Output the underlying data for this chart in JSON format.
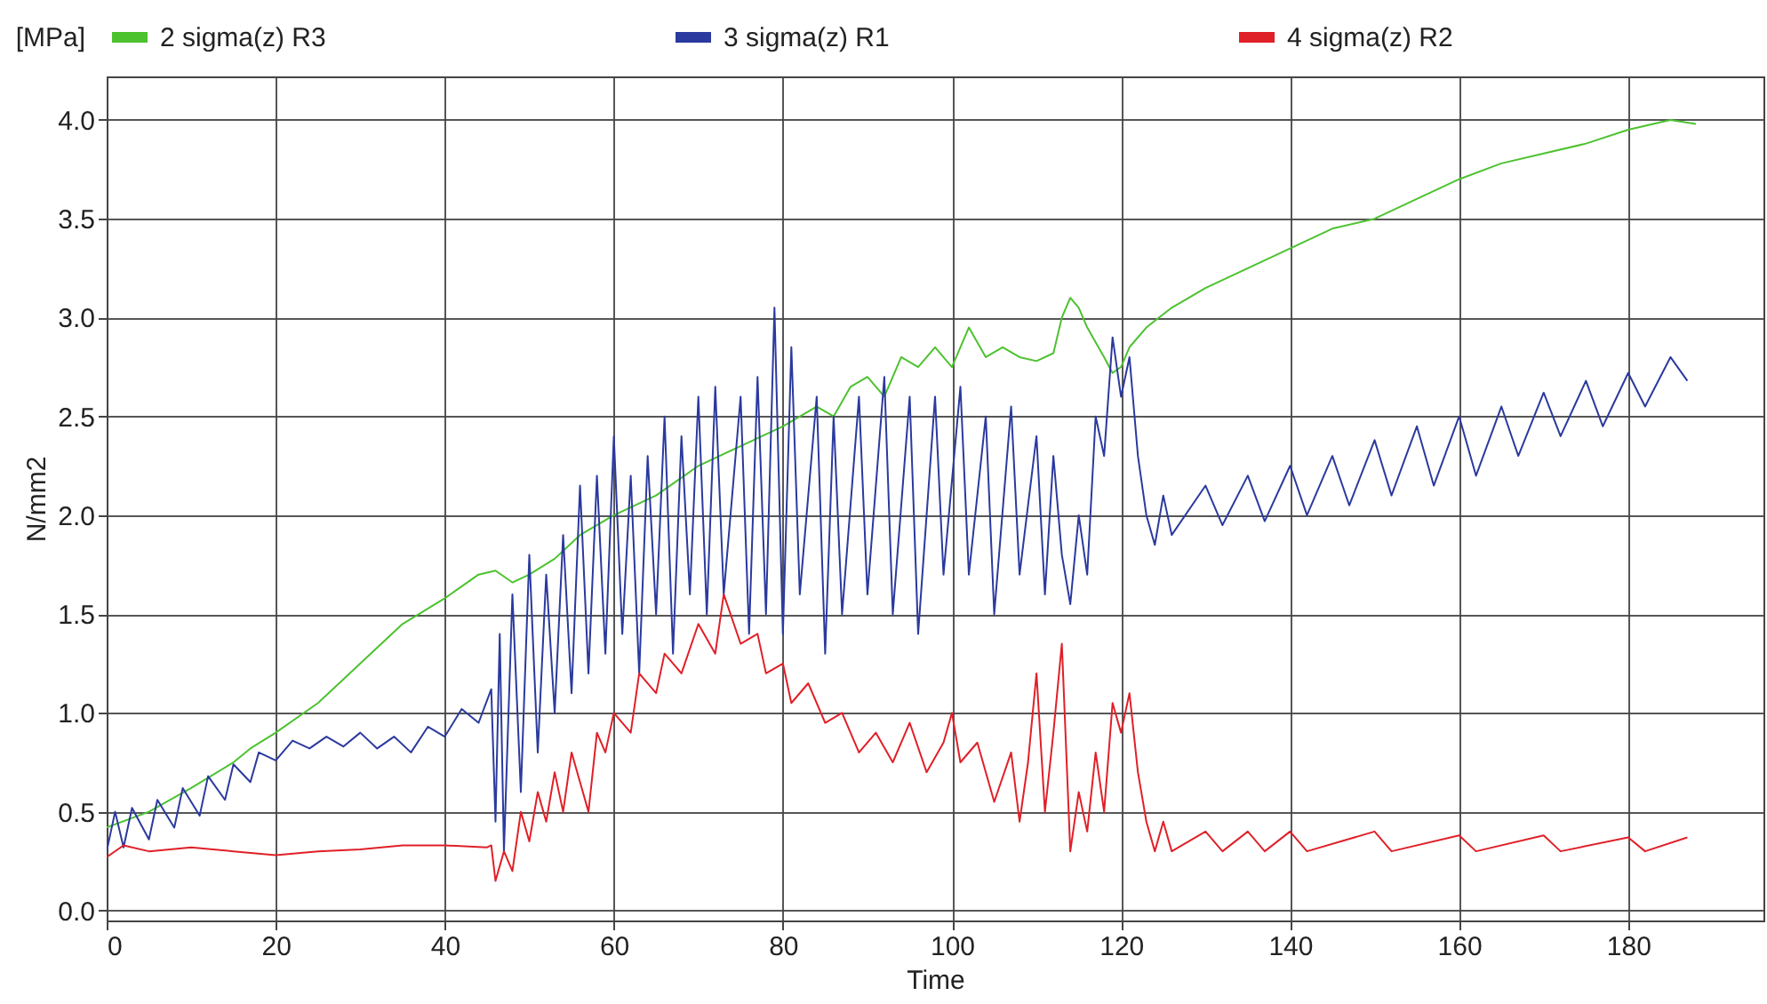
{
  "chart_data": {
    "type": "line",
    "xlabel": "Time",
    "ylabel": "N/mm2",
    "annotations": [
      "[MPa]"
    ],
    "xlim": [
      0,
      196
    ],
    "ylim": [
      -0.05,
      4.22
    ],
    "xticks": [
      0,
      20,
      40,
      60,
      80,
      100,
      120,
      140,
      160,
      180
    ],
    "yticks": [
      {
        "value": 0,
        "label": "0.0"
      },
      {
        "value": 0.5,
        "label": "0.5"
      },
      {
        "value": 1,
        "label": "1.0"
      },
      {
        "value": 1.5,
        "label": "1.5"
      },
      {
        "value": 2,
        "label": "2.0"
      },
      {
        "value": 2.5,
        "label": "2.5"
      },
      {
        "value": 3,
        "label": "3.0"
      },
      {
        "value": 3.5,
        "label": "3.5"
      },
      {
        "value": 4,
        "label": "4.0"
      }
    ],
    "grid": true,
    "legend": "top",
    "line_style": "solid",
    "series": [
      {
        "name": "2  sigma(z) R3",
        "color": "#4cc22f",
        "x": [
          0,
          5,
          10,
          15,
          17,
          20,
          25,
          30,
          35,
          40,
          44,
          46,
          48,
          50,
          53,
          56,
          60,
          65,
          70,
          75,
          80,
          84,
          86,
          88,
          90,
          92,
          94,
          96,
          98,
          100,
          102,
          104,
          106,
          108,
          110,
          112,
          113,
          114,
          115,
          116,
          118,
          119,
          120,
          121,
          123,
          126,
          130,
          135,
          140,
          145,
          150,
          155,
          160,
          165,
          170,
          175,
          180,
          185,
          188
        ],
        "values": [
          0.42,
          0.5,
          0.62,
          0.75,
          0.82,
          0.9,
          1.05,
          1.25,
          1.45,
          1.58,
          1.7,
          1.72,
          1.66,
          1.7,
          1.78,
          1.9,
          2.0,
          2.1,
          2.25,
          2.35,
          2.45,
          2.55,
          2.5,
          2.65,
          2.7,
          2.6,
          2.8,
          2.75,
          2.85,
          2.75,
          2.95,
          2.8,
          2.85,
          2.8,
          2.78,
          2.82,
          3.0,
          3.1,
          3.05,
          2.95,
          2.8,
          2.72,
          2.75,
          2.85,
          2.95,
          3.05,
          3.15,
          3.25,
          3.35,
          3.45,
          3.5,
          3.6,
          3.7,
          3.78,
          3.83,
          3.88,
          3.95,
          4.0,
          3.98
        ]
      },
      {
        "name": "3  sigma(z) R1",
        "color": "#2b3a9e",
        "x": [
          0,
          1,
          2,
          3,
          5,
          6,
          8,
          9,
          11,
          12,
          14,
          15,
          17,
          18,
          20,
          22,
          24,
          26,
          28,
          30,
          32,
          34,
          36,
          38,
          40,
          42,
          44,
          45.5,
          46,
          46.5,
          47,
          48,
          49,
          50,
          51,
          52,
          53,
          54,
          55,
          56,
          57,
          58,
          59,
          60,
          61,
          62,
          63,
          64,
          65,
          66,
          67,
          68,
          69,
          70,
          71,
          72,
          73,
          75,
          76,
          77,
          78,
          79,
          80,
          81,
          82,
          84,
          85,
          86,
          87,
          89,
          90,
          92,
          93,
          95,
          96,
          98,
          99,
          101,
          102,
          104,
          105,
          107,
          108,
          110,
          111,
          112,
          113,
          114,
          115,
          116,
          117,
          118,
          119,
          120,
          121,
          122,
          123,
          124,
          125,
          126,
          130,
          132,
          135,
          137,
          140,
          142,
          145,
          147,
          150,
          152,
          155,
          157,
          160,
          162,
          165,
          167,
          170,
          172,
          175,
          177,
          180,
          182,
          185,
          187
        ],
        "values": [
          0.3,
          0.5,
          0.32,
          0.52,
          0.36,
          0.56,
          0.42,
          0.62,
          0.48,
          0.68,
          0.56,
          0.74,
          0.65,
          0.8,
          0.76,
          0.86,
          0.82,
          0.88,
          0.83,
          0.9,
          0.82,
          0.88,
          0.8,
          0.93,
          0.88,
          1.02,
          0.95,
          1.12,
          0.45,
          1.4,
          0.3,
          1.6,
          0.6,
          1.8,
          0.8,
          1.7,
          1.0,
          1.9,
          1.1,
          2.15,
          1.2,
          2.2,
          1.3,
          2.4,
          1.4,
          2.2,
          1.2,
          2.3,
          1.5,
          2.5,
          1.3,
          2.4,
          1.6,
          2.6,
          1.5,
          2.65,
          1.6,
          2.6,
          1.4,
          2.7,
          1.5,
          3.05,
          1.4,
          2.85,
          1.6,
          2.6,
          1.3,
          2.5,
          1.5,
          2.6,
          1.6,
          2.7,
          1.5,
          2.6,
          1.4,
          2.6,
          1.7,
          2.65,
          1.7,
          2.5,
          1.5,
          2.55,
          1.7,
          2.4,
          1.6,
          2.3,
          1.8,
          1.55,
          2.0,
          1.7,
          2.5,
          2.3,
          2.9,
          2.6,
          2.8,
          2.3,
          2.0,
          1.85,
          2.1,
          1.9,
          2.15,
          1.95,
          2.2,
          1.97,
          2.25,
          2.0,
          2.3,
          2.05,
          2.38,
          2.1,
          2.45,
          2.15,
          2.5,
          2.2,
          2.55,
          2.3,
          2.62,
          2.4,
          2.68,
          2.45,
          2.72,
          2.55,
          2.8,
          2.68
        ]
      },
      {
        "name": "4  sigma(z) R2",
        "color": "#e02028",
        "x": [
          0,
          2,
          5,
          10,
          15,
          20,
          25,
          30,
          35,
          40,
          45,
          45.5,
          46,
          47,
          48,
          49,
          50,
          51,
          52,
          53,
          54,
          55,
          56,
          57,
          58,
          59,
          60,
          62,
          63,
          65,
          66,
          68,
          70,
          72,
          73,
          75,
          77,
          78,
          80,
          81,
          83,
          85,
          87,
          89,
          91,
          93,
          95,
          97,
          99,
          100,
          101,
          103,
          105,
          107,
          108,
          109,
          110,
          111,
          112,
          113,
          114,
          115,
          116,
          117,
          118,
          119,
          120,
          121,
          122,
          123,
          124,
          125,
          126,
          130,
          132,
          135,
          137,
          140,
          142,
          150,
          152,
          160,
          162,
          170,
          172,
          180,
          182,
          187
        ],
        "values": [
          0.27,
          0.33,
          0.3,
          0.32,
          0.3,
          0.28,
          0.3,
          0.31,
          0.33,
          0.33,
          0.32,
          0.33,
          0.15,
          0.3,
          0.2,
          0.5,
          0.35,
          0.6,
          0.45,
          0.7,
          0.5,
          0.8,
          0.65,
          0.5,
          0.9,
          0.8,
          1.0,
          0.9,
          1.2,
          1.1,
          1.3,
          1.2,
          1.45,
          1.3,
          1.6,
          1.35,
          1.4,
          1.2,
          1.25,
          1.05,
          1.15,
          0.95,
          1.0,
          0.8,
          0.9,
          0.75,
          0.95,
          0.7,
          0.85,
          1.0,
          0.75,
          0.85,
          0.55,
          0.8,
          0.45,
          0.75,
          1.2,
          0.5,
          0.9,
          1.35,
          0.3,
          0.6,
          0.4,
          0.8,
          0.5,
          1.05,
          0.9,
          1.1,
          0.7,
          0.45,
          0.3,
          0.45,
          0.3,
          0.4,
          0.3,
          0.4,
          0.3,
          0.4,
          0.3,
          0.4,
          0.3,
          0.38,
          0.3,
          0.38,
          0.3,
          0.37,
          0.3,
          0.37
        ]
      }
    ]
  }
}
